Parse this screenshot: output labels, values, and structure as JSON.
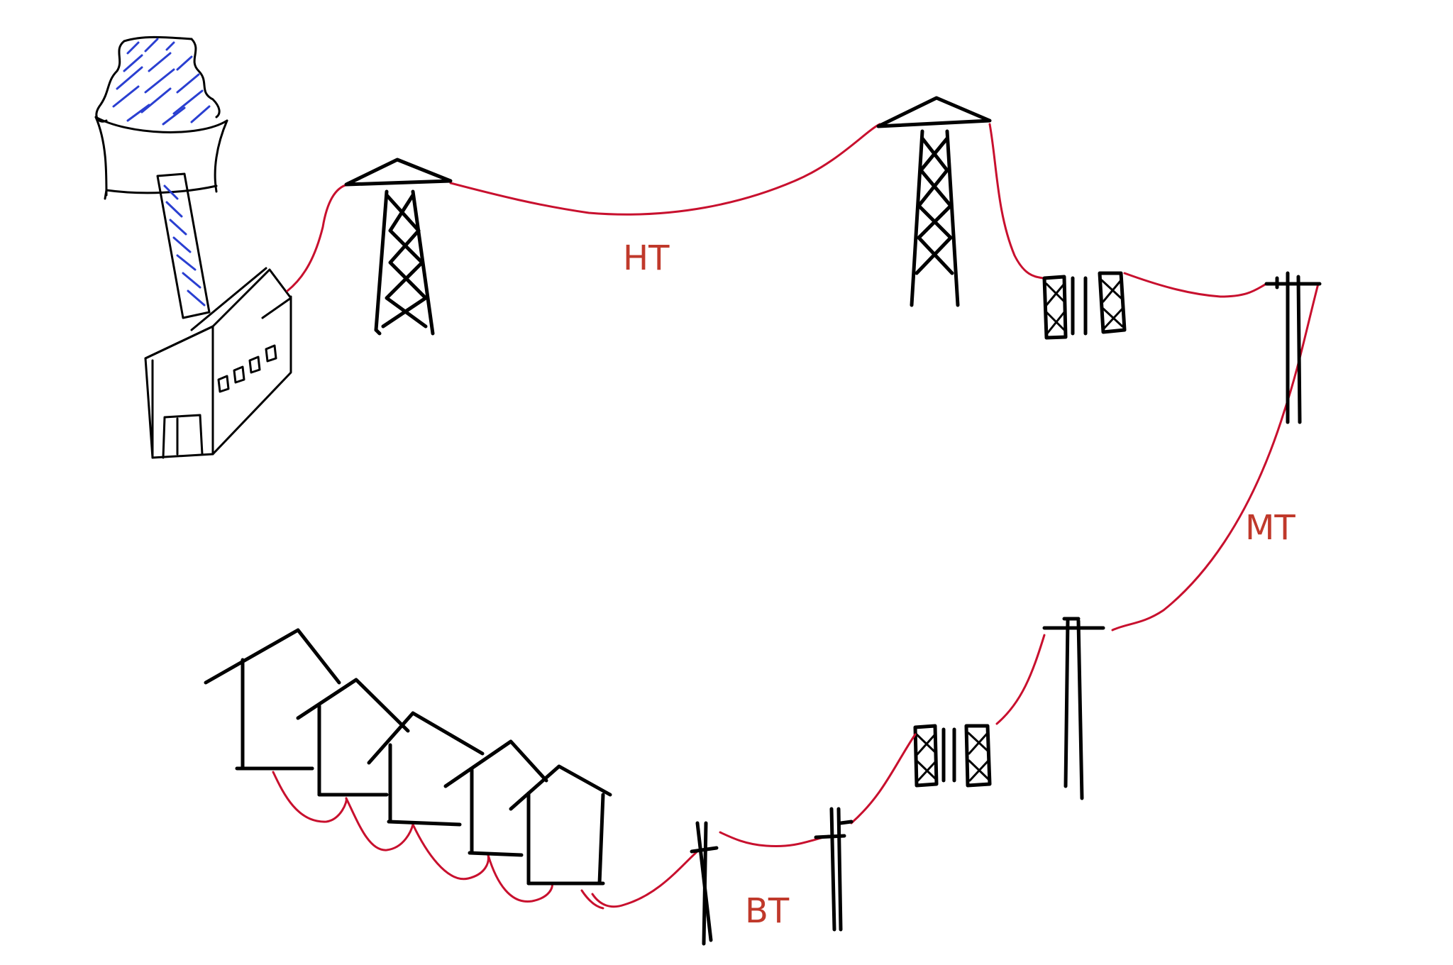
{
  "colors": {
    "wire": "#c8102e",
    "label": "#c0392b",
    "ink": "#000000",
    "steam": "#2a3fd1"
  },
  "labels": {
    "high_voltage": "HT",
    "medium_voltage": "MT",
    "low_voltage": "BT"
  }
}
